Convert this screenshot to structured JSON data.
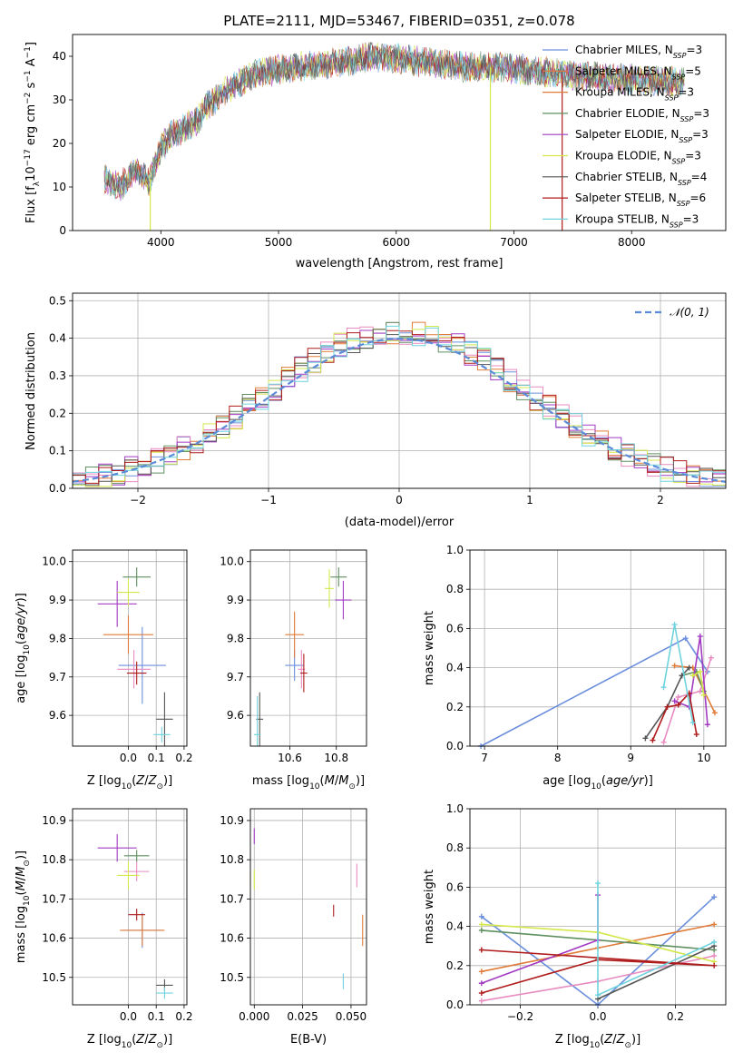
{
  "figure_title": "PLATE=2111, MJD=53467, FIBERID=0351, z=0.078",
  "colors": {
    "Chabrier MILES": "#6b8fdc",
    "Salpeter MILES": "#e07b39",
    "Kroupa MILES": "#e07b39",
    "Chabrier ELODIE": "#5f8f5f",
    "Salpeter ELODIE": "#a23bc2",
    "Kroupa ELODIE": "#d4e84d",
    "Chabrier STELIB": "#555555",
    "Salpeter STELIB": "#b01c1c",
    "Kroupa STELIB": "#6fd3de",
    "pink": "#e88bc0",
    "gaussian": "#5b8bd8"
  },
  "chart_data": [
    {
      "type": "line",
      "panel": "spectrum",
      "xlabel": "wavelength [Angstrom, rest frame]",
      "ylabel": "Flux [f_λ 10^-17 erg cm^-2 s^-1 A^-1]",
      "xlim": [
        3250,
        8800
      ],
      "ylim": [
        0,
        45
      ],
      "xticks": [
        4000,
        5000,
        6000,
        7000,
        8000
      ],
      "yticks": [
        0,
        10,
        20,
        30,
        40
      ],
      "legend_position": "right",
      "legend": [
        {
          "label": "Chabrier MILES, N",
          "sub": "SSP",
          "suffix": "=3"
        },
        {
          "label": "Salpeter MILES, N",
          "sub": "SSP",
          "suffix": "=5"
        },
        {
          "label": "Kroupa MILES, N",
          "sub": "SSP",
          "suffix": "=3"
        },
        {
          "label": "Chabrier ELODIE, N",
          "sub": "SSP",
          "suffix": "=3"
        },
        {
          "label": "Salpeter ELODIE, N",
          "sub": "SSP",
          "suffix": "=3"
        },
        {
          "label": "Kroupa ELODIE, N",
          "sub": "SSP",
          "suffix": "=3"
        },
        {
          "label": "Chabrier STELIB, N",
          "sub": "SSP",
          "suffix": "=4"
        },
        {
          "label": "Salpeter STELIB, N",
          "sub": "SSP",
          "suffix": "=6"
        },
        {
          "label": "Kroupa STELIB, N",
          "sub": "SSP",
          "suffix": "=3"
        }
      ],
      "continuum_knots": [
        [
          3500,
          12
        ],
        [
          3650,
          10
        ],
        [
          3800,
          14
        ],
        [
          3900,
          11
        ],
        [
          4000,
          19
        ],
        [
          4100,
          22
        ],
        [
          4300,
          25
        ],
        [
          4400,
          29
        ],
        [
          4600,
          33
        ],
        [
          4800,
          36
        ],
        [
          5000,
          37
        ],
        [
          5200,
          37.5
        ],
        [
          5500,
          38.5
        ],
        [
          5800,
          40
        ],
        [
          6000,
          39.5
        ],
        [
          6300,
          38.5
        ],
        [
          6600,
          37.5
        ],
        [
          6900,
          37.5
        ],
        [
          7200,
          36.5
        ],
        [
          7500,
          35.5
        ],
        [
          7800,
          35
        ],
        [
          8100,
          34.5
        ],
        [
          8450,
          34
        ]
      ],
      "dropouts": [
        [
          3910,
          "#d4e84d"
        ],
        [
          6800,
          "#d4e84d"
        ],
        [
          7410,
          "#b01c1c"
        ]
      ]
    },
    {
      "type": "step",
      "panel": "residuals",
      "xlabel": "(data-model)/error",
      "ylabel": "Normed distribution",
      "xlim": [
        -2.5,
        2.5
      ],
      "ylim": [
        0,
        0.52
      ],
      "xticks": [
        -2,
        -1,
        0,
        1,
        2
      ],
      "yticks": [
        0.0,
        0.1,
        0.2,
        0.3,
        0.4,
        0.5
      ],
      "grid": true,
      "legend_position": "top-right",
      "gaussian_label": "𝒩(0, 1)"
    },
    {
      "type": "scatter",
      "panel": "age-vs-Z",
      "xlabel": "Z [log10(Z/Z⊙)]",
      "ylabel": "age [log10(age/yr)]",
      "xlim": [
        -0.2,
        0.21
      ],
      "ylim": [
        9.52,
        10.03
      ],
      "xticks": [
        0.0,
        0.1,
        0.2
      ],
      "yticks": [
        9.6,
        9.7,
        9.8,
        9.9,
        10.0
      ],
      "grid": true,
      "points": [
        {
          "color": "#6b8fdc",
          "x": 0.05,
          "xerr": 0.17,
          "y": 9.73,
          "yerr": 0.2
        },
        {
          "color": "#e07b39",
          "x": 0.0,
          "xerr": 0.18,
          "y": 9.81,
          "yerr": 0.1
        },
        {
          "color": "#e88bc0",
          "x": 0.02,
          "xerr": 0.12,
          "y": 9.72,
          "yerr": 0.1
        },
        {
          "color": "#5f8f5f",
          "x": 0.03,
          "xerr": 0.1,
          "y": 9.96,
          "yerr": 0.05
        },
        {
          "color": "#a23bc2",
          "x": -0.04,
          "xerr": 0.14,
          "y": 9.89,
          "yerr": 0.12
        },
        {
          "color": "#d4e84d",
          "x": 0.0,
          "xerr": 0.08,
          "y": 9.92,
          "yerr": 0.07
        },
        {
          "color": "#555555",
          "x": 0.13,
          "xerr": 0.06,
          "y": 9.59,
          "yerr": 0.14
        },
        {
          "color": "#b01c1c",
          "x": 0.03,
          "xerr": 0.07,
          "y": 9.71,
          "yerr": 0.06
        },
        {
          "color": "#6fd3de",
          "x": 0.12,
          "xerr": 0.06,
          "y": 9.55,
          "yerr": 0.04
        }
      ]
    },
    {
      "type": "scatter",
      "panel": "age-vs-mass",
      "xlabel": "mass [log10(M/M⊙)]",
      "ylabel": "",
      "xlim": [
        10.43,
        10.93
      ],
      "ylim": [
        9.52,
        10.03
      ],
      "xticks": [
        10.6,
        10.8
      ],
      "yticks": [
        9.6,
        9.7,
        9.8,
        9.9,
        10.0
      ],
      "grid": true,
      "points": [
        {
          "color": "#6b8fdc",
          "x": 10.62,
          "xerr": 0.08,
          "y": 9.73,
          "yerr": 0.08
        },
        {
          "color": "#e07b39",
          "x": 10.62,
          "xerr": 0.08,
          "y": 9.81,
          "yerr": 0.12
        },
        {
          "color": "#e88bc0",
          "x": 10.65,
          "xerr": 0.03,
          "y": 9.72,
          "yerr": 0.1
        },
        {
          "color": "#5f8f5f",
          "x": 10.81,
          "xerr": 0.07,
          "y": 9.96,
          "yerr": 0.05
        },
        {
          "color": "#a23bc2",
          "x": 10.83,
          "xerr": 0.07,
          "y": 9.9,
          "yerr": 0.1
        },
        {
          "color": "#d4e84d",
          "x": 10.77,
          "xerr": 0.04,
          "y": 9.93,
          "yerr": 0.1
        },
        {
          "color": "#555555",
          "x": 10.47,
          "xerr": 0.03,
          "y": 9.59,
          "yerr": 0.14
        },
        {
          "color": "#b01c1c",
          "x": 10.66,
          "xerr": 0.03,
          "y": 9.71,
          "yerr": 0.1
        },
        {
          "color": "#6fd3de",
          "x": 10.46,
          "xerr": 0.03,
          "y": 9.55,
          "yerr": 0.2
        }
      ]
    },
    {
      "type": "line",
      "panel": "mass-weight-vs-age",
      "xlabel": "age [log10(age/yr)]",
      "ylabel": "mass weight",
      "xlim": [
        6.8,
        10.3
      ],
      "ylim": [
        0.0,
        1.0
      ],
      "xticks": [
        7,
        8,
        9,
        10
      ],
      "yticks": [
        0.0,
        0.2,
        0.4,
        0.6,
        0.8,
        1.0
      ],
      "grid": true,
      "series": [
        {
          "color": "#6b8fdc",
          "points": [
            [
              6.95,
              0.0
            ],
            [
              9.75,
              0.55
            ],
            [
              10.05,
              0.38
            ]
          ]
        },
        {
          "color": "#e07b39",
          "points": [
            [
              9.6,
              0.41
            ],
            [
              9.85,
              0.4
            ],
            [
              10.15,
              0.17
            ]
          ]
        },
        {
          "color": "#e88bc0",
          "points": [
            [
              9.45,
              0.02
            ],
            [
              9.65,
              0.25
            ],
            [
              9.95,
              0.28
            ],
            [
              10.1,
              0.45
            ]
          ]
        },
        {
          "color": "#5f8f5f",
          "points": [
            [
              9.7,
              0.36
            ],
            [
              9.9,
              0.38
            ],
            [
              10.0,
              0.28
            ]
          ]
        },
        {
          "color": "#a23bc2",
          "points": [
            [
              9.6,
              0.23
            ],
            [
              9.8,
              0.2
            ],
            [
              9.95,
              0.56
            ],
            [
              10.05,
              0.11
            ]
          ]
        },
        {
          "color": "#d4e84d",
          "points": [
            [
              9.85,
              0.36
            ],
            [
              9.95,
              0.38
            ],
            [
              10.0,
              0.26
            ]
          ]
        },
        {
          "color": "#555555",
          "points": [
            [
              9.2,
              0.04
            ],
            [
              9.5,
              0.2
            ],
            [
              9.7,
              0.36
            ],
            [
              9.8,
              0.4
            ]
          ]
        },
        {
          "color": "#b01c1c",
          "points": [
            [
              9.3,
              0.03
            ],
            [
              9.5,
              0.2
            ],
            [
              9.65,
              0.21
            ],
            [
              9.8,
              0.27
            ],
            [
              9.9,
              0.06
            ]
          ]
        },
        {
          "color": "#6fd3de",
          "points": [
            [
              9.45,
              0.3
            ],
            [
              9.6,
              0.62
            ],
            [
              9.85,
              0.12
            ]
          ]
        }
      ]
    },
    {
      "type": "scatter",
      "panel": "mass-vs-Z",
      "xlabel": "Z [log10(Z/Z⊙)]",
      "ylabel": "mass [log10(M/M⊙)]",
      "xlim": [
        -0.2,
        0.21
      ],
      "ylim": [
        10.43,
        10.93
      ],
      "xticks": [
        0.0,
        0.1,
        0.2
      ],
      "yticks": [
        10.5,
        10.6,
        10.7,
        10.8,
        10.9
      ],
      "grid": true,
      "points": [
        {
          "color": "#6b8fdc",
          "x": 0.05,
          "xerr": 0.14,
          "y": 10.62,
          "yerr": 0.09
        },
        {
          "color": "#e07b39",
          "x": 0.05,
          "xerr": 0.16,
          "y": 10.62,
          "yerr": 0.08
        },
        {
          "color": "#e88bc0",
          "x": 0.03,
          "xerr": 0.09,
          "y": 10.77,
          "yerr": 0.05
        },
        {
          "color": "#5f8f5f",
          "x": 0.03,
          "xerr": 0.09,
          "y": 10.81,
          "yerr": 0.03
        },
        {
          "color": "#a23bc2",
          "x": -0.04,
          "xerr": 0.14,
          "y": 10.83,
          "yerr": 0.07
        },
        {
          "color": "#d4e84d",
          "x": 0.0,
          "xerr": 0.08,
          "y": 10.76,
          "yerr": 0.07
        },
        {
          "color": "#555555",
          "x": 0.13,
          "xerr": 0.06,
          "y": 10.48,
          "yerr": 0.03
        },
        {
          "color": "#b01c1c",
          "x": 0.03,
          "xerr": 0.06,
          "y": 10.66,
          "yerr": 0.03
        },
        {
          "color": "#6fd3de",
          "x": 0.13,
          "xerr": 0.06,
          "y": 10.46,
          "yerr": 0.03
        }
      ]
    },
    {
      "type": "scatter",
      "panel": "mass-vs-EBV",
      "xlabel": "E(B-V)",
      "ylabel": "",
      "xlim": [
        -0.002,
        0.058
      ],
      "ylim": [
        10.43,
        10.93
      ],
      "xticks": [
        0.0,
        0.025,
        0.05
      ],
      "tick_labels": [
        "0.000",
        "0.025",
        "0.050"
      ],
      "yticks": [
        10.5,
        10.6,
        10.7,
        10.8,
        10.9
      ],
      "grid": true,
      "points": [
        {
          "color": "#a23bc2",
          "x": 0.0,
          "y": 10.86,
          "yerr": 0.04
        },
        {
          "color": "#d4e84d",
          "x": 0.0,
          "y": 10.75,
          "yerr": 0.05
        },
        {
          "color": "#b01c1c",
          "x": 0.041,
          "y": 10.67,
          "yerr": 0.03
        },
        {
          "color": "#6fd3de",
          "x": 0.046,
          "y": 10.49,
          "yerr": 0.04
        },
        {
          "color": "#e88bc0",
          "x": 0.053,
          "y": 10.76,
          "yerr": 0.06
        },
        {
          "color": "#e07b39",
          "x": 0.056,
          "y": 10.62,
          "yerr": 0.08
        }
      ]
    },
    {
      "type": "line",
      "panel": "mass-weight-vs-Z",
      "xlabel": "Z [log10(Z/Z⊙)]",
      "ylabel": "mass weight",
      "xlim": [
        -0.33,
        0.33
      ],
      "ylim": [
        0.0,
        1.0
      ],
      "xticks": [
        -0.2,
        0.0,
        0.2
      ],
      "yticks": [
        0.0,
        0.2,
        0.4,
        0.6,
        0.8,
        1.0
      ],
      "grid": true,
      "series": [
        {
          "color": "#6b8fdc",
          "points": [
            [
              -0.3,
              0.45
            ],
            [
              0.0,
              0.0
            ],
            [
              0.3,
              0.55
            ]
          ]
        },
        {
          "color": "#e07b39",
          "points": [
            [
              -0.3,
              0.17
            ],
            [
              0.0,
              0.29
            ],
            [
              0.3,
              0.41
            ]
          ]
        },
        {
          "color": "#e88bc0",
          "points": [
            [
              -0.3,
              0.02
            ],
            [
              0.0,
              0.12
            ],
            [
              0.3,
              0.25
            ]
          ]
        },
        {
          "color": "#5f8f5f",
          "points": [
            [
              -0.3,
              0.38
            ],
            [
              0.0,
              0.33
            ],
            [
              0.3,
              0.28
            ]
          ]
        },
        {
          "color": "#a23bc2",
          "points": [
            [
              -0.3,
              0.11
            ],
            [
              0.0,
              0.33
            ],
            [
              0.0,
              0.56
            ]
          ]
        },
        {
          "color": "#d4e84d",
          "points": [
            [
              -0.3,
              0.41
            ],
            [
              0.0,
              0.37
            ],
            [
              0.3,
              0.22
            ]
          ]
        },
        {
          "color": "#555555",
          "points": [
            [
              0.0,
              0.03
            ],
            [
              0.3,
              0.3
            ]
          ]
        },
        {
          "color": "#b01c1c",
          "points": [
            [
              -0.3,
              0.06
            ],
            [
              0.0,
              0.23
            ],
            [
              0.3,
              0.2
            ],
            [
              -0.3,
              0.28
            ]
          ]
        },
        {
          "color": "#6fd3de",
          "points": [
            [
              0.0,
              0.62
            ],
            [
              0.0,
              0.05
            ],
            [
              0.3,
              0.32
            ]
          ]
        }
      ]
    }
  ]
}
